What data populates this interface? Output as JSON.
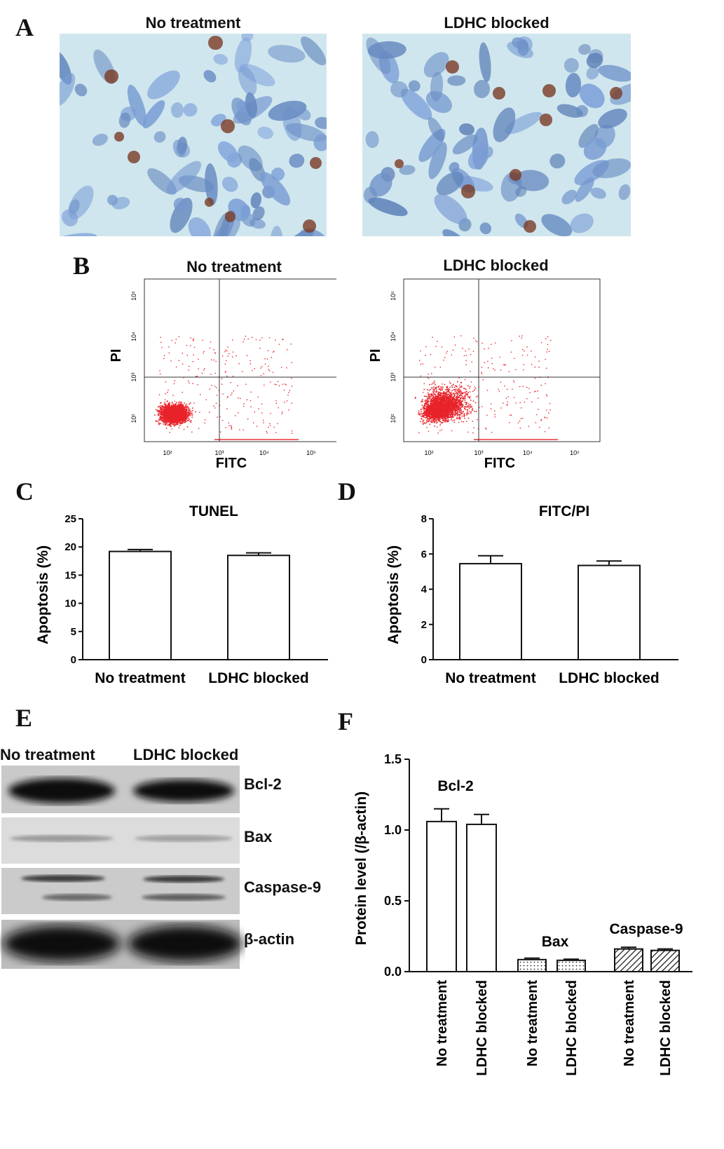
{
  "panels": {
    "a": {
      "letter": "A",
      "left_title": "No treatment",
      "right_title": "LDHC blocked"
    },
    "b": {
      "letter": "B",
      "left_title": "No treatment",
      "right_title": "LDHC blocked",
      "y_axis": "PI",
      "x_axis": "FITC",
      "x_ticks": [
        "10²",
        "10³",
        "10⁴",
        "10⁵"
      ],
      "y_ticks": [
        "10²",
        "10³",
        "10⁴",
        "10⁵"
      ]
    },
    "c": {
      "letter": "C"
    },
    "d": {
      "letter": "D"
    },
    "e": {
      "letter": "E",
      "lane_labels": [
        "No treatment",
        "LDHC blocked"
      ],
      "bands": [
        "Bcl-2",
        "Bax",
        "Caspase-9",
        "β-actin"
      ]
    },
    "f": {
      "letter": "F"
    }
  },
  "chart_data": [
    {
      "id": "C",
      "type": "bar",
      "title": "TUNEL",
      "ylabel": "Apoptosis (%)",
      "xlabel": "",
      "categories": [
        "No treatment",
        "LDHC blocked"
      ],
      "values": [
        19.2,
        18.5
      ],
      "errors": [
        0.35,
        0.45
      ],
      "ylim": [
        0,
        25
      ],
      "yticks": [
        0,
        5,
        10,
        15,
        20,
        25
      ],
      "fill": "#ffffff"
    },
    {
      "id": "D",
      "type": "bar",
      "title": "FITC/PI",
      "ylabel": "Apoptosis (%)",
      "xlabel": "",
      "categories": [
        "No treatment",
        "LDHC blocked"
      ],
      "values": [
        5.45,
        5.35
      ],
      "errors": [
        0.45,
        0.25
      ],
      "ylim": [
        0,
        8
      ],
      "yticks": [
        0,
        2,
        4,
        6,
        8
      ],
      "fill": "#ffffff"
    },
    {
      "id": "F",
      "type": "bar",
      "title": "",
      "ylabel": "Protein level (/β-actin)",
      "xlabel": "",
      "categories": [
        "No treatment",
        "LDHC blocked",
        "No treatment",
        "LDHC blocked",
        "No treatment",
        "LDHC blocked"
      ],
      "groups": [
        {
          "label": "Bcl-2",
          "pattern": "open",
          "values": [
            1.06,
            1.04
          ],
          "errors": [
            0.09,
            0.07
          ]
        },
        {
          "label": "Bax",
          "pattern": "dotted",
          "values": [
            0.085,
            0.08
          ],
          "errors": [
            0.01,
            0.008
          ]
        },
        {
          "label": "Caspase-9",
          "pattern": "hatched",
          "values": [
            0.16,
            0.15
          ],
          "errors": [
            0.012,
            0.01
          ]
        }
      ],
      "ylim": [
        0,
        1.5
      ],
      "yticks": [
        "0.0",
        "0.5",
        "1.0",
        "1.5"
      ]
    }
  ],
  "colors": {
    "micro_bg": "#cfe6ee",
    "nucleus_blue": "#6f86b8",
    "apoptotic_brown": "#7a3b24",
    "scatter_red": "#e8232a"
  }
}
